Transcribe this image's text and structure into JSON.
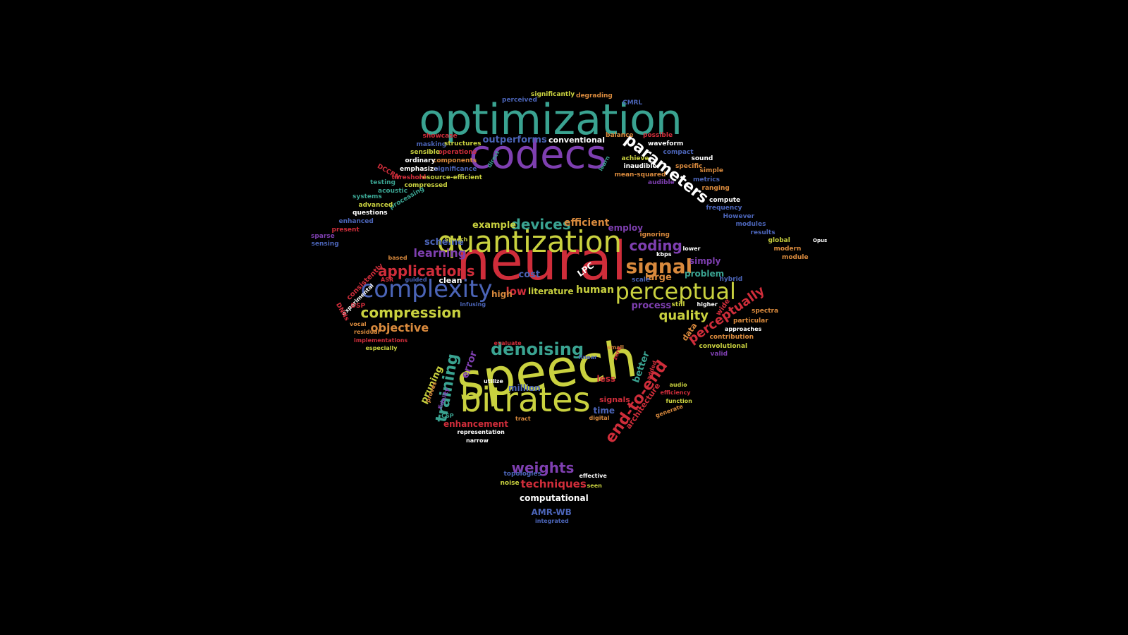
{
  "colors": {
    "background": "#000000",
    "teal": "#3aa391",
    "purple": "#7e3fb0",
    "red": "#cf2d3a",
    "lime": "#c9d13f",
    "blue": "#4b64b7",
    "orange": "#d98a3d",
    "white": "#ffffff"
  },
  "words": [
    {
      "t": "neural",
      "c": "red"
    },
    {
      "t": "speech",
      "c": "lime"
    },
    {
      "t": "optimization",
      "c": "teal"
    },
    {
      "t": "codecs",
      "c": "purple"
    },
    {
      "t": "quantization",
      "c": "lime"
    },
    {
      "t": "bitrates",
      "c": "lime"
    },
    {
      "t": "complexity",
      "c": "blue"
    },
    {
      "t": "perceptual",
      "c": "lime"
    },
    {
      "t": "parameters",
      "c": "white"
    },
    {
      "t": "denoising",
      "c": "teal"
    },
    {
      "t": "signal",
      "c": "orange"
    },
    {
      "t": "end-to-end",
      "c": "red"
    },
    {
      "t": "training",
      "c": "teal"
    },
    {
      "t": "applications",
      "c": "red"
    },
    {
      "t": "compression",
      "c": "lime"
    },
    {
      "t": "devices",
      "c": "teal"
    },
    {
      "t": "coding",
      "c": "purple"
    },
    {
      "t": "quality",
      "c": "lime"
    },
    {
      "t": "weights",
      "c": "purple"
    },
    {
      "t": "perceptually",
      "c": "red"
    },
    {
      "t": "objective",
      "c": "orange"
    },
    {
      "t": "learning",
      "c": "purple"
    },
    {
      "t": "error",
      "c": "purple"
    },
    {
      "t": "techniques",
      "c": "red"
    },
    {
      "t": "human",
      "c": "lime"
    },
    {
      "t": "efficient",
      "c": "orange"
    },
    {
      "t": "example",
      "c": "lime"
    },
    {
      "t": "outperforms",
      "c": "blue"
    },
    {
      "t": "pruning",
      "c": "lime"
    },
    {
      "t": "scheme",
      "c": "blue"
    },
    {
      "t": "literature",
      "c": "lime"
    },
    {
      "t": "low",
      "c": "red"
    },
    {
      "t": "conventional",
      "c": "white"
    },
    {
      "t": "computational",
      "c": "white"
    },
    {
      "t": "process",
      "c": "purple"
    },
    {
      "t": "enhancement",
      "c": "red"
    },
    {
      "t": "better",
      "c": "teal"
    },
    {
      "t": "architecture",
      "c": "red"
    },
    {
      "t": "million",
      "c": "blue"
    },
    {
      "t": "large",
      "c": "orange"
    },
    {
      "t": "cost",
      "c": "blue"
    },
    {
      "t": "high",
      "c": "orange"
    },
    {
      "t": "employ",
      "c": "purple"
    },
    {
      "t": "problem",
      "c": "teal"
    },
    {
      "t": "simply",
      "c": "purple"
    },
    {
      "t": "less",
      "c": "red"
    },
    {
      "t": "signals",
      "c": "red"
    },
    {
      "t": "time",
      "c": "blue"
    },
    {
      "t": "LPC",
      "c": "white"
    },
    {
      "t": "clean",
      "c": "white"
    },
    {
      "t": "data",
      "c": "orange"
    },
    {
      "t": "AMR-WB",
      "c": "blue"
    },
    {
      "t": "waveform",
      "c": "white"
    },
    {
      "t": "masking",
      "c": "blue"
    },
    {
      "t": "structures",
      "c": "lime"
    },
    {
      "t": "significantly",
      "c": "lime"
    },
    {
      "t": "degrading",
      "c": "orange"
    },
    {
      "t": "perceived",
      "c": "blue"
    },
    {
      "t": "CMRL",
      "c": "blue"
    },
    {
      "t": "balance",
      "c": "orange"
    },
    {
      "t": "possible",
      "c": "red"
    },
    {
      "t": "showcase",
      "c": "red"
    },
    {
      "t": "operations",
      "c": "red"
    },
    {
      "t": "sensible",
      "c": "lime"
    },
    {
      "t": "components",
      "c": "orange"
    },
    {
      "t": "ordinary",
      "c": "white"
    },
    {
      "t": "emphasize",
      "c": "white"
    },
    {
      "t": "significance",
      "c": "blue"
    },
    {
      "t": "compressed",
      "c": "lime"
    },
    {
      "t": "resource-efficient",
      "c": "lime"
    },
    {
      "t": "threshold",
      "c": "red"
    },
    {
      "t": "DCCRN",
      "c": "red"
    },
    {
      "t": "testing",
      "c": "teal"
    },
    {
      "t": "acoustic",
      "c": "teal"
    },
    {
      "t": "systems",
      "c": "teal"
    },
    {
      "t": "processing",
      "c": "teal"
    },
    {
      "t": "advanced",
      "c": "lime"
    },
    {
      "t": "questions",
      "c": "white"
    },
    {
      "t": "enhanced",
      "c": "blue"
    },
    {
      "t": "present",
      "c": "red"
    },
    {
      "t": "sparse",
      "c": "purple"
    },
    {
      "t": "sensing",
      "c": "blue"
    },
    {
      "t": "achieve",
      "c": "lime"
    },
    {
      "t": "inaudible",
      "c": "white"
    },
    {
      "t": "compact",
      "c": "blue"
    },
    {
      "t": "specific",
      "c": "orange"
    },
    {
      "t": "sound",
      "c": "white"
    },
    {
      "t": "simple",
      "c": "orange"
    },
    {
      "t": "mean-squared",
      "c": "orange"
    },
    {
      "t": "audible",
      "c": "purple"
    },
    {
      "t": "metrics",
      "c": "blue"
    },
    {
      "t": "ranging",
      "c": "orange"
    },
    {
      "t": "compute",
      "c": "white"
    },
    {
      "t": "frequency",
      "c": "blue"
    },
    {
      "t": "However",
      "c": "blue"
    },
    {
      "t": "modules",
      "c": "blue"
    },
    {
      "t": "results",
      "c": "blue"
    },
    {
      "t": "global",
      "c": "lime"
    },
    {
      "t": "modern",
      "c": "orange"
    },
    {
      "t": "module",
      "c": "orange"
    },
    {
      "t": "kbps",
      "c": "white"
    },
    {
      "t": "ignoring",
      "c": "orange"
    },
    {
      "t": "lower",
      "c": "white"
    },
    {
      "t": "hybrid",
      "c": "blue"
    },
    {
      "t": "scale",
      "c": "blue"
    },
    {
      "t": "still",
      "c": "lime"
    },
    {
      "t": "higher",
      "c": "white"
    },
    {
      "t": "wide",
      "c": "red"
    },
    {
      "t": "particular",
      "c": "orange"
    },
    {
      "t": "approaches",
      "c": "white"
    },
    {
      "t": "spectra",
      "c": "orange"
    },
    {
      "t": "contribution",
      "c": "orange"
    },
    {
      "t": "convolutional",
      "c": "lime"
    },
    {
      "t": "valid",
      "c": "purple"
    },
    {
      "t": "based",
      "c": "orange"
    },
    {
      "t": "guided",
      "c": "blue"
    },
    {
      "t": "ASR",
      "c": "red"
    },
    {
      "t": "infusing",
      "c": "blue"
    },
    {
      "t": "consistently",
      "c": "red"
    },
    {
      "t": "experimental",
      "c": "white"
    },
    {
      "t": "DSP",
      "c": "red"
    },
    {
      "t": "DNNs",
      "c": "red"
    },
    {
      "t": "vocal",
      "c": "orange"
    },
    {
      "t": "residual",
      "c": "orange"
    },
    {
      "t": "implementations",
      "c": "red"
    },
    {
      "t": "especially",
      "c": "lime"
    },
    {
      "t": "evaluate",
      "c": "red"
    },
    {
      "t": "small",
      "c": "orange"
    },
    {
      "t": "linear",
      "c": "blue"
    },
    {
      "t": "zero",
      "c": "red"
    },
    {
      "t": "added",
      "c": "red"
    },
    {
      "t": "utilize",
      "c": "white"
    },
    {
      "t": "audio",
      "c": "lime"
    },
    {
      "t": "efficiency",
      "c": "red"
    },
    {
      "t": "function",
      "c": "lime"
    },
    {
      "t": "generate",
      "c": "orange"
    },
    {
      "t": "digital",
      "c": "orange"
    },
    {
      "t": "tract",
      "c": "orange"
    },
    {
      "t": "proves",
      "c": "orange"
    },
    {
      "t": "fidelity",
      "c": "purple"
    },
    {
      "t": "CSP",
      "c": "teal"
    },
    {
      "t": "representation",
      "c": "white"
    },
    {
      "t": "narrow",
      "c": "white"
    },
    {
      "t": "topologies",
      "c": "blue"
    },
    {
      "t": "effective",
      "c": "white"
    },
    {
      "t": "noise",
      "c": "lime"
    },
    {
      "t": "seen",
      "c": "lime"
    },
    {
      "t": "integrated",
      "c": "blue"
    },
    {
      "t": "Speech",
      "c": "lime"
    },
    {
      "t": "learn",
      "c": "teal"
    },
    {
      "t": "direct",
      "c": "teal"
    },
    {
      "t": "Opus",
      "c": "white"
    }
  ]
}
